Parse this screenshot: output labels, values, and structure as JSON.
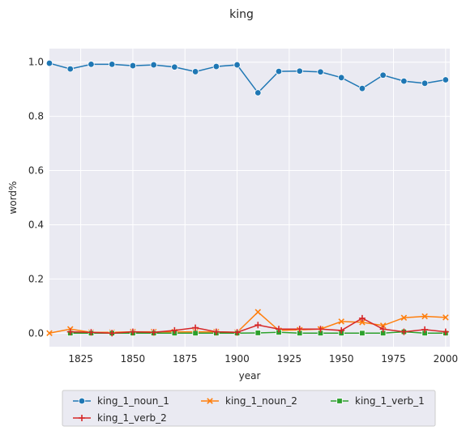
{
  "chart_data": {
    "type": "line",
    "title": "king",
    "xlabel": "year",
    "ylabel": "word%",
    "xlim": [
      1810,
      2002
    ],
    "ylim": [
      -0.05,
      1.05
    ],
    "xticks": [
      1825,
      1850,
      1875,
      1900,
      1925,
      1950,
      1975,
      2000
    ],
    "yticks": [
      0.0,
      0.2,
      0.4,
      0.6,
      0.8,
      1.0
    ],
    "xtick_labels": [
      "1825",
      "1850",
      "1875",
      "1900",
      "1925",
      "1950",
      "1975",
      "2000"
    ],
    "ytick_labels": [
      "0.0",
      "0.2",
      "0.4",
      "0.6",
      "0.8",
      "1.0"
    ],
    "grid": true,
    "legend_position": "bottom-center",
    "x": [
      1810,
      1820,
      1830,
      1840,
      1850,
      1860,
      1870,
      1880,
      1890,
      1900,
      1910,
      1920,
      1930,
      1940,
      1950,
      1960,
      1970,
      1980,
      1990,
      2000
    ],
    "series": [
      {
        "name": "king_1_noun_1",
        "color": "#1f77b4",
        "marker": "circle",
        "values": [
          0.996,
          0.975,
          0.992,
          0.992,
          0.987,
          0.99,
          0.982,
          0.965,
          0.984,
          0.99,
          0.887,
          0.966,
          0.967,
          0.964,
          0.943,
          0.903,
          0.952,
          0.93,
          0.922,
          0.935
        ]
      },
      {
        "name": "king_1_noun_2",
        "color": "#ff7f0e",
        "marker": "x",
        "values": [
          0.0,
          0.015,
          0.003,
          0.003,
          0.005,
          0.005,
          0.005,
          0.005,
          0.005,
          0.003,
          0.078,
          0.01,
          0.012,
          0.015,
          0.043,
          0.04,
          0.028,
          0.057,
          0.062,
          0.058
        ]
      },
      {
        "name": "king_1_verb_1",
        "color": "#2ca02c",
        "marker": "square",
        "values": [
          null,
          0.0,
          0.0,
          0.0,
          0.0,
          0.0,
          0.0,
          0.0,
          0.0,
          0.0,
          0.001,
          0.003,
          0.0,
          0.0,
          0.0,
          0.0,
          0.0,
          0.005,
          0.0,
          0.0
        ]
      },
      {
        "name": "king_1_verb_2",
        "color": "#d62728",
        "marker": "plus",
        "values": [
          null,
          0.005,
          0.003,
          0.0,
          0.005,
          0.003,
          0.01,
          0.02,
          0.005,
          0.003,
          0.03,
          0.015,
          0.015,
          0.015,
          0.01,
          0.055,
          0.015,
          0.005,
          0.013,
          0.005
        ]
      }
    ]
  }
}
